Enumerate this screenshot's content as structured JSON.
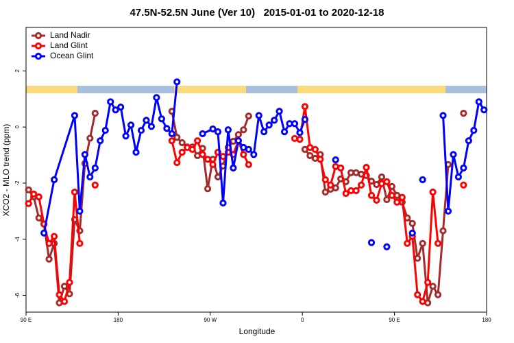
{
  "chart_data": {
    "type": "line",
    "title": "47.5N-52.5N June (Ver 10)   2015-01-01 to 2020-12-18",
    "x_label": "Longitude",
    "y_label": "XCO2 - MLO trend (ppm)",
    "xlim": [
      -270,
      180
    ],
    "xticks": [
      {
        "value": -270,
        "label": "90 E"
      },
      {
        "value": -180,
        "label": "180"
      },
      {
        "value": -90,
        "label": "90 W"
      },
      0,
      {
        "value": 90,
        "label": "90 E"
      },
      180
    ],
    "ylim": [
      -6.6,
      3.55
    ],
    "yticks": [
      -6,
      -4,
      -2,
      0,
      2
    ],
    "legend": "top-left",
    "series": [
      {
        "name": "Land Nadir",
        "color": "#a52a2a",
        "x": [
          -267.5,
          -262.5,
          -257.5,
          -252.5,
          -247.5,
          -242.5,
          -237.5,
          -232.5,
          -227.5,
          -222.5,
          -217.5,
          -212.5,
          -207.5,
          -202.5,
          -197.5,
          -127.5,
          -122.5,
          -117.5,
          -112.5,
          -107.5,
          -102.5,
          -97.5,
          -92.5,
          -87.5,
          -82.5,
          -77.5,
          -72.5,
          -67.5,
          -62.5,
          -57.5,
          -52.5,
          -47.5,
          2.5,
          7.5,
          12.5,
          17.5,
          22.5,
          27.5,
          32.5,
          37.5,
          42.5,
          47.5,
          52.5,
          57.5,
          62.5,
          67.5,
          72.5,
          77.5,
          82.5,
          87.5,
          92.5,
          97.5,
          102.5,
          107.5,
          112.5,
          117.5,
          122.5,
          127.5,
          132.5,
          137.5,
          142.5,
          147.5,
          157.5
        ],
        "values": [
          -2.24,
          -2.49,
          -3.24,
          -3.46,
          -4.71,
          -4.15,
          -6.27,
          -5.68,
          -5.95,
          -3.3,
          -3.7,
          -1.3,
          -0.4,
          0.49,
          null,
          0.56,
          -0.37,
          -0.56,
          -0.71,
          -0.71,
          -1.02,
          -0.76,
          -2.2,
          -1.15,
          -1.78,
          -1.39,
          -0.73,
          -0.51,
          -0.27,
          -0.1,
          0.39,
          null,
          -0.8,
          -1.02,
          -1.12,
          -0.98,
          -2.32,
          -2.22,
          -2.17,
          -1.85,
          -1.95,
          -1.63,
          -1.63,
          -1.68,
          -1.73,
          -1.93,
          -2.05,
          -1.78,
          -2.59,
          -2.12,
          -2.44,
          -2.68,
          -3.24,
          -3.44,
          -4.68,
          -4.15,
          -6.27,
          -5.68,
          -5.98,
          -3.7,
          -1.34,
          null,
          0.49
        ]
      },
      {
        "name": "Land Glint",
        "color": "#ff0000",
        "x": [
          -267.5,
          -262.5,
          -257.5,
          -252.5,
          -247.5,
          -242.5,
          -237.5,
          -232.5,
          -227.5,
          -222.5,
          -217.5,
          -212.5,
          -202.5,
          -197.5,
          -127.5,
          -122.5,
          -117.5,
          -112.5,
          -107.5,
          -102.5,
          -97.5,
          -92.5,
          -87.5,
          -82.5,
          -77.5,
          -72.5,
          -67.5,
          -62.5,
          -57.5,
          -52.5,
          -47.5,
          -7.5,
          -2.5,
          2.5,
          7.5,
          12.5,
          17.5,
          22.5,
          27.5,
          32.5,
          37.5,
          42.5,
          47.5,
          52.5,
          57.5,
          62.5,
          67.5,
          72.5,
          77.5,
          82.5,
          87.5,
          92.5,
          97.5,
          102.5,
          107.5,
          112.5,
          117.5,
          122.5,
          127.5,
          132.5,
          137.5,
          157.5
        ],
        "values": [
          -2.73,
          -2.39,
          -2.49,
          -3.46,
          -4.15,
          -3.9,
          -5.98,
          -6.22,
          -5.54,
          -2.32,
          -4.15,
          null,
          -2.07,
          null,
          -0.49,
          -1.27,
          -0.9,
          -0.73,
          -0.8,
          -0.49,
          -0.98,
          -1.15,
          -1.34,
          -0.9,
          -1.05,
          -0.9,
          -0.98,
          -0.49,
          -0.98,
          -1.34,
          null,
          -0.41,
          -0.44,
          0.73,
          -0.73,
          -0.8,
          -1.15,
          -1.88,
          -2.07,
          -1.41,
          -1.46,
          -2.37,
          -2.27,
          -2.27,
          -2.07,
          -1.44,
          -2.44,
          -2.61,
          -2.02,
          -1.95,
          -2.44,
          -2.68,
          -2.51,
          -4.15,
          -3.9,
          -5.98,
          -6.22,
          -5.54,
          -2.32,
          -4.15,
          null,
          -2.07
        ]
      },
      {
        "name": "Ocean Glint",
        "color": "#0000ff",
        "x": [
          -252.5,
          -242.5,
          -222.5,
          -217.5,
          -212.5,
          -207.5,
          -202.5,
          -197.5,
          -192.5,
          -187.5,
          -182.5,
          -177.5,
          -172.5,
          -167.5,
          -162.5,
          -157.5,
          -152.5,
          -147.5,
          -142.5,
          -137.5,
          -132.5,
          -127.5,
          -122.5,
          -117.5,
          -97.5,
          -87.5,
          -82.5,
          -77.5,
          -72.5,
          -67.5,
          -62.5,
          -57.5,
          -52.5,
          -47.5,
          -42.5,
          -37.5,
          -32.5,
          -27.5,
          -22.5,
          -17.5,
          -12.5,
          -7.5,
          -2.5,
          2.5,
          7.5,
          32.5,
          37.5,
          67.5,
          72.5,
          82.5,
          87.5,
          107.5,
          112.5,
          117.5,
          122.5,
          137.5,
          142.5,
          147.5,
          152.5,
          157.5,
          162.5,
          167.5,
          172.5,
          177.5
        ],
        "values": [
          -3.78,
          -1.88,
          0.41,
          -3.0,
          -0.98,
          -1.78,
          -1.46,
          -0.49,
          -0.12,
          0.9,
          0.61,
          0.71,
          -0.32,
          0.07,
          -0.9,
          -0.12,
          0.24,
          0.02,
          1.05,
          0.29,
          -0.05,
          -0.24,
          1.61,
          null,
          -0.24,
          -0.07,
          -0.17,
          -2.71,
          -0.1,
          -1.46,
          -0.49,
          -0.73,
          -0.8,
          -0.98,
          0.41,
          -0.17,
          0.07,
          0.24,
          0.56,
          -0.17,
          0.12,
          0.12,
          -0.2,
          0.27,
          null,
          -1.17,
          null,
          -4.12,
          null,
          -4.27,
          null,
          -3.78,
          null,
          -1.88,
          null,
          0.41,
          -3.0,
          -0.98,
          -1.78,
          -1.46,
          -0.49,
          -0.12,
          0.9,
          0.61
        ]
      }
    ]
  }
}
